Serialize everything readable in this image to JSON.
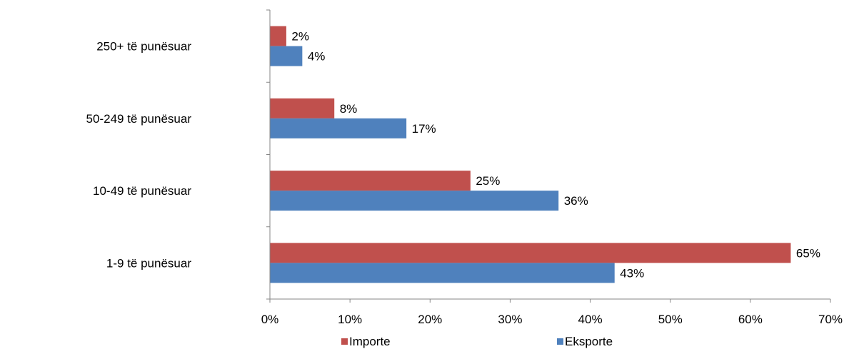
{
  "chart_data": {
    "type": "bar",
    "orientation": "horizontal",
    "categories": [
      "250+  të punësuar",
      "50-249 të punësuar",
      "10-49 të punësuar",
      "1-9  të punësuar"
    ],
    "series": [
      {
        "name": "Importe",
        "color": "#C0504D",
        "values": [
          2,
          8,
          25,
          65
        ],
        "labels": [
          "2%",
          "8%",
          "25%",
          "65%"
        ]
      },
      {
        "name": "Eksporte",
        "color": "#4F81BD",
        "values": [
          4,
          17,
          36,
          43
        ],
        "labels": [
          "4%",
          "17%",
          "36%",
          "43%"
        ]
      }
    ],
    "xlim": [
      0,
      70
    ],
    "ticks": [
      0,
      10,
      20,
      30,
      40,
      50,
      60,
      70
    ],
    "tick_labels": [
      "0%",
      "10%",
      "20%",
      "30%",
      "40%",
      "50%",
      "60%",
      "70%"
    ],
    "grid": false,
    "legend_position": "bottom"
  }
}
